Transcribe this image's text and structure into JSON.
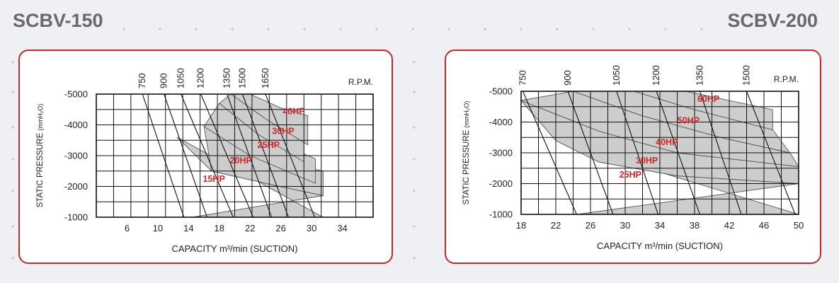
{
  "header": {
    "left_title": "SCBV-150",
    "right_title": "SCBV-200"
  },
  "colors": {
    "border": "#c22a2a",
    "band_fill": "#cdcdcd",
    "hp_label": "#c8292b",
    "background": "#eef0f3",
    "title": "#666a70"
  },
  "chart_data": [
    {
      "type": "area",
      "title": "SCBV-150",
      "xlabel": "CAPACITY m³/min (SUCTION)",
      "ylabel": "STATIC PRESSURE",
      "ylabel_unit": "(mmH₂O)",
      "xlim": [
        2,
        38
      ],
      "ylim": [
        -5000,
        -1000
      ],
      "grid": true,
      "x_ticks": [
        6,
        10,
        14,
        18,
        22,
        26,
        30,
        34
      ],
      "y_ticks": [
        -5000,
        -4000,
        -3000,
        -2000,
        -1000
      ],
      "rpm_label": "R.P.M.",
      "rpm_curves": [
        {
          "rpm": "750",
          "points": [
            [
              8.0,
              -5000
            ],
            [
              13.4,
              -1000
            ]
          ]
        },
        {
          "rpm": "900",
          "points": [
            [
              10.8,
              -5000
            ],
            [
              16.4,
              -1000
            ]
          ]
        },
        {
          "rpm": "1050",
          "points": [
            [
              13.0,
              -5000
            ],
            [
              19.8,
              -1000
            ]
          ]
        },
        {
          "rpm": "1200",
          "points": [
            [
              15.6,
              -5000
            ],
            [
              22.4,
              -1000
            ]
          ]
        },
        {
          "rpm": "1350",
          "points": [
            [
              19.0,
              -5000
            ],
            [
              24.8,
              -1000
            ]
          ]
        },
        {
          "rpm": "1500",
          "points": [
            [
              21.0,
              -5000
            ],
            [
              27.0,
              -1000
            ]
          ]
        },
        {
          "rpm": "1650",
          "points": [
            [
              24.0,
              -5000
            ],
            [
              30.4,
              -1000
            ]
          ]
        }
      ],
      "hp_bands": [
        {
          "label": "15HP",
          "label_at": [
            17.3,
            -2150
          ],
          "upper": [
            [
              12.5,
              -3600
            ],
            [
              17,
              -2500
            ],
            [
              24,
              -2100
            ],
            [
              31.5,
              -1700
            ]
          ],
          "lower": [
            [
              14.5,
              -1000
            ],
            [
              31.5,
              -1000
            ]
          ]
        },
        {
          "label": "20HP",
          "label_at": [
            20.8,
            -2750
          ],
          "upper": [
            [
              16,
              -3950
            ],
            [
              22,
              -3000
            ],
            [
              31.5,
              -2500
            ]
          ],
          "lower": [
            [
              31.5,
              -1700
            ],
            [
              24,
              -2100
            ],
            [
              17,
              -2500
            ]
          ]
        },
        {
          "label": "25HP",
          "label_at": [
            24.4,
            -3250
          ],
          "upper": [
            [
              18,
              -4700
            ],
            [
              23,
              -3700
            ],
            [
              30.5,
              -2900
            ]
          ],
          "lower": [
            [
              30.5,
              -2100
            ],
            [
              22,
              -3000
            ],
            [
              16,
              -3950
            ]
          ]
        },
        {
          "label": "30HP",
          "label_at": [
            26.3,
            -3700
          ],
          "upper": [
            [
              19.5,
              -5000
            ],
            [
              24,
              -4200
            ],
            [
              29,
              -3500
            ]
          ],
          "lower": [
            [
              29,
              -2800
            ],
            [
              23,
              -3700
            ],
            [
              18,
              -4700
            ]
          ]
        },
        {
          "label": "40HP",
          "label_at": [
            27.7,
            -4350
          ],
          "upper": [
            [
              22,
              -5000
            ],
            [
              26,
              -4550
            ],
            [
              29.5,
              -4300
            ]
          ],
          "lower": [
            [
              29.5,
              -3350
            ],
            [
              24,
              -4200
            ],
            [
              19.5,
              -5000
            ]
          ]
        }
      ]
    },
    {
      "type": "area",
      "title": "SCBV-200",
      "xlabel": "CAPACITY m³/min (SUCTION)",
      "ylabel": "STATIC PRESSURE",
      "ylabel_unit": "(mmH₂O)",
      "xlim": [
        18,
        50
      ],
      "ylim": [
        -5000,
        -1000
      ],
      "grid": true,
      "x_ticks": [
        18,
        22,
        26,
        30,
        34,
        38,
        42,
        46,
        50
      ],
      "y_ticks": [
        -5000,
        -4000,
        -3000,
        -2000,
        -1000
      ],
      "rpm_label": "R.P.M.",
      "rpm_curves": [
        {
          "rpm": "750",
          "points": [
            [
              18.2,
              -5000
            ],
            [
              24.4,
              -1000
            ]
          ]
        },
        {
          "rpm": "900",
          "points": [
            [
              23.4,
              -5000
            ],
            [
              28.6,
              -1000
            ]
          ]
        },
        {
          "rpm": "1050",
          "points": [
            [
              29.0,
              -5000
            ],
            [
              33.8,
              -1000
            ]
          ]
        },
        {
          "rpm": "1200",
          "points": [
            [
              33.6,
              -5000
            ],
            [
              38.6,
              -1000
            ]
          ]
        },
        {
          "rpm": "1350",
          "points": [
            [
              38.6,
              -5000
            ],
            [
              43.4,
              -1000
            ]
          ]
        },
        {
          "rpm": "1500",
          "points": [
            [
              44.0,
              -5000
            ],
            [
              49.6,
              -1000
            ]
          ]
        }
      ],
      "hp_bands": [
        {
          "label": "25HP",
          "label_at": [
            30.6,
            -2200
          ],
          "upper": [
            [
              22,
              -3400
            ],
            [
              27,
              -2700
            ],
            [
              36,
              -2250
            ],
            [
              50,
              -2000
            ]
          ],
          "lower": [
            [
              24.5,
              -1000
            ],
            [
              50,
              -1000
            ]
          ]
        },
        {
          "label": "30HP",
          "label_at": [
            32.5,
            -2650
          ],
          "upper": [
            [
              18,
              -4700
            ],
            [
              27,
              -3700
            ],
            [
              36,
              -3000
            ],
            [
              50,
              -2550
            ]
          ],
          "lower": [
            [
              50,
              -2000
            ],
            [
              36,
              -2250
            ],
            [
              27,
              -2700
            ],
            [
              22,
              -3400
            ]
          ]
        },
        {
          "label": "40HP",
          "label_at": [
            34.8,
            -3250
          ],
          "upper": [
            [
              24,
              -5000
            ],
            [
              32,
              -4200
            ],
            [
              41,
              -3500
            ],
            [
              49,
              -3000
            ]
          ],
          "lower": [
            [
              50,
              -2550
            ],
            [
              36,
              -3000
            ],
            [
              27,
              -3700
            ],
            [
              18,
              -4700
            ]
          ]
        },
        {
          "label": "50HP",
          "label_at": [
            37.3,
            -3950
          ],
          "upper": [
            [
              31,
              -5000
            ],
            [
              38,
              -4400
            ],
            [
              47,
              -3750
            ]
          ],
          "lower": [
            [
              49,
              -3000
            ],
            [
              41,
              -3500
            ],
            [
              32,
              -4200
            ],
            [
              24,
              -5000
            ]
          ]
        },
        {
          "label": "60HP",
          "label_at": [
            39.6,
            -4650
          ],
          "upper": [
            [
              37,
              -5000
            ],
            [
              47,
              -4400
            ]
          ],
          "lower": [
            [
              47,
              -3750
            ],
            [
              38,
              -4400
            ],
            [
              31,
              -5000
            ]
          ]
        }
      ]
    }
  ]
}
